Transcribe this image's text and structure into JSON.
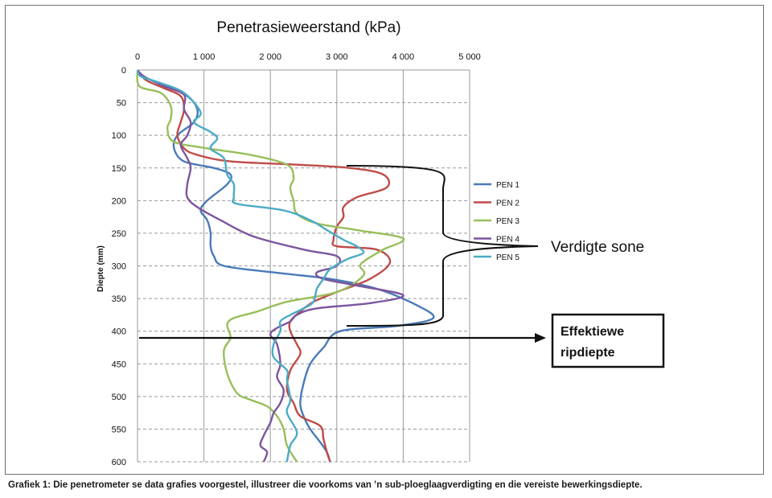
{
  "chart_data": {
    "type": "line",
    "title": "Penetrasieweerstand (kPa)",
    "xlabel": "",
    "ylabel": "Diepte (mm)",
    "xlim": [
      0,
      5000
    ],
    "ylim": [
      0,
      600
    ],
    "y_inverted": true,
    "x_axis_position": "top",
    "x_ticks": [
      0,
      1000,
      2000,
      3000,
      4000,
      5000
    ],
    "x_tick_labels": [
      "0",
      "1 000",
      "2 000",
      "3 000",
      "4 000",
      "5 000"
    ],
    "y_ticks": [
      0,
      50,
      100,
      150,
      200,
      250,
      300,
      350,
      400,
      450,
      500,
      550,
      600
    ],
    "y_tick_labels": [
      "0",
      "50",
      "100",
      "150",
      "200",
      "250",
      "300",
      "350",
      "400",
      "450",
      "500",
      "550",
      "600"
    ],
    "grid": "dashed horizontal, solid vertical",
    "legend_position": "right",
    "series": [
      {
        "name": "PEN   1",
        "color": "#4a7ab8",
        "points": [
          [
            0,
            0
          ],
          [
            80,
            10
          ],
          [
            450,
            25
          ],
          [
            750,
            40
          ],
          [
            900,
            60
          ],
          [
            850,
            80
          ],
          [
            600,
            100
          ],
          [
            550,
            120
          ],
          [
            700,
            140
          ],
          [
            1150,
            150
          ],
          [
            1400,
            160
          ],
          [
            1350,
            175
          ],
          [
            1050,
            200
          ],
          [
            950,
            215
          ],
          [
            1050,
            230
          ],
          [
            1100,
            250
          ],
          [
            1100,
            270
          ],
          [
            1150,
            285
          ],
          [
            1300,
            300
          ],
          [
            2050,
            310
          ],
          [
            2900,
            320
          ],
          [
            3600,
            335
          ],
          [
            4200,
            360
          ],
          [
            4450,
            380
          ],
          [
            3900,
            392
          ],
          [
            3050,
            400
          ],
          [
            2800,
            425
          ],
          [
            2600,
            450
          ],
          [
            2500,
            480
          ],
          [
            2450,
            510
          ],
          [
            2500,
            530
          ],
          [
            2600,
            550
          ],
          [
            2750,
            570
          ],
          [
            2850,
            585
          ],
          [
            2900,
            600
          ]
        ]
      },
      {
        "name": "PEN   2",
        "color": "#bf4b47",
        "points": [
          [
            0,
            0
          ],
          [
            120,
            15
          ],
          [
            400,
            28
          ],
          [
            650,
            40
          ],
          [
            700,
            60
          ],
          [
            650,
            80
          ],
          [
            600,
            100
          ],
          [
            700,
            120
          ],
          [
            900,
            130
          ],
          [
            1400,
            140
          ],
          [
            2400,
            145
          ],
          [
            3200,
            150
          ],
          [
            3700,
            160
          ],
          [
            3750,
            180
          ],
          [
            3300,
            195
          ],
          [
            3100,
            210
          ],
          [
            3100,
            225
          ],
          [
            3000,
            240
          ],
          [
            2950,
            260
          ],
          [
            3000,
            270
          ],
          [
            3600,
            275
          ],
          [
            3800,
            295
          ],
          [
            3500,
            320
          ],
          [
            3000,
            340
          ],
          [
            2650,
            355
          ],
          [
            2450,
            370
          ],
          [
            2300,
            385
          ],
          [
            2300,
            400
          ],
          [
            2400,
            420
          ],
          [
            2450,
            435
          ],
          [
            2300,
            460
          ],
          [
            2250,
            490
          ],
          [
            2350,
            510
          ],
          [
            2450,
            530
          ],
          [
            2750,
            545
          ],
          [
            2800,
            565
          ],
          [
            2850,
            585
          ],
          [
            2900,
            600
          ]
        ]
      },
      {
        "name": "PEN   3",
        "color": "#97bf5a",
        "points": [
          [
            0,
            0
          ],
          [
            30,
            25
          ],
          [
            350,
            35
          ],
          [
            500,
            55
          ],
          [
            500,
            75
          ],
          [
            450,
            90
          ],
          [
            550,
            110
          ],
          [
            1050,
            120
          ],
          [
            1700,
            130
          ],
          [
            2250,
            145
          ],
          [
            2350,
            165
          ],
          [
            2300,
            180
          ],
          [
            2350,
            200
          ],
          [
            2400,
            220
          ],
          [
            2700,
            235
          ],
          [
            3300,
            245
          ],
          [
            4000,
            258
          ],
          [
            3700,
            275
          ],
          [
            3450,
            290
          ],
          [
            3350,
            300
          ],
          [
            3400,
            315
          ],
          [
            3000,
            340
          ],
          [
            2250,
            355
          ],
          [
            1800,
            370
          ],
          [
            1450,
            380
          ],
          [
            1350,
            390
          ],
          [
            1400,
            410
          ],
          [
            1300,
            430
          ],
          [
            1350,
            465
          ],
          [
            1500,
            495
          ],
          [
            1700,
            505
          ],
          [
            1950,
            515
          ],
          [
            2100,
            530
          ],
          [
            2200,
            550
          ],
          [
            2250,
            575
          ],
          [
            2400,
            600
          ]
        ]
      },
      {
        "name": "PEN   4",
        "color": "#7b569d",
        "points": [
          [
            0,
            0
          ],
          [
            100,
            10
          ],
          [
            400,
            25
          ],
          [
            700,
            38
          ],
          [
            700,
            60
          ],
          [
            800,
            80
          ],
          [
            750,
            100
          ],
          [
            650,
            115
          ],
          [
            750,
            135
          ],
          [
            800,
            150
          ],
          [
            750,
            175
          ],
          [
            750,
            195
          ],
          [
            900,
            210
          ],
          [
            1250,
            230
          ],
          [
            1750,
            255
          ],
          [
            2500,
            275
          ],
          [
            3000,
            285
          ],
          [
            3000,
            300
          ],
          [
            2700,
            310
          ],
          [
            2800,
            320
          ],
          [
            3300,
            330
          ],
          [
            4000,
            345
          ],
          [
            3500,
            357
          ],
          [
            2700,
            365
          ],
          [
            2400,
            375
          ],
          [
            2300,
            385
          ],
          [
            2100,
            395
          ],
          [
            2000,
            405
          ],
          [
            2100,
            420
          ],
          [
            2150,
            450
          ],
          [
            2100,
            470
          ],
          [
            2200,
            490
          ],
          [
            2150,
            510
          ],
          [
            2050,
            525
          ],
          [
            2000,
            540
          ],
          [
            1900,
            560
          ],
          [
            1850,
            575
          ],
          [
            1950,
            585
          ],
          [
            1900,
            600
          ]
        ]
      },
      {
        "name": "PEN   5",
        "color": "#4babc6",
        "points": [
          [
            0,
            0
          ],
          [
            50,
            10
          ],
          [
            350,
            20
          ],
          [
            700,
            35
          ],
          [
            950,
            65
          ],
          [
            850,
            80
          ],
          [
            1100,
            95
          ],
          [
            1200,
            105
          ],
          [
            1100,
            120
          ],
          [
            1300,
            135
          ],
          [
            1350,
            160
          ],
          [
            1450,
            175
          ],
          [
            1450,
            195
          ],
          [
            1500,
            205
          ],
          [
            2200,
            215
          ],
          [
            2600,
            230
          ],
          [
            2850,
            245
          ],
          [
            3100,
            260
          ],
          [
            3300,
            270
          ],
          [
            3400,
            280
          ],
          [
            3150,
            290
          ],
          [
            2900,
            305
          ],
          [
            2800,
            320
          ],
          [
            2700,
            335
          ],
          [
            2650,
            355
          ],
          [
            2500,
            365
          ],
          [
            2300,
            375
          ],
          [
            2150,
            385
          ],
          [
            2150,
            400
          ],
          [
            2050,
            420
          ],
          [
            2050,
            440
          ],
          [
            2250,
            460
          ],
          [
            2250,
            475
          ],
          [
            2300,
            505
          ],
          [
            2250,
            525
          ],
          [
            2400,
            555
          ],
          [
            2300,
            575
          ],
          [
            2250,
            600
          ]
        ]
      }
    ],
    "annotations": {
      "compacted_zone_label": "Verdigte sone",
      "ripping_depth_label_line1": "Effektiewe",
      "ripping_depth_label_line2": "ripdiepte",
      "ripping_depth_mm": 410,
      "compacted_zone_from_mm": 147,
      "compacted_zone_to_mm": 392
    }
  },
  "caption": "Grafiek 1: Die penetrometer se data grafies voorgestel, illustreer die voorkoms van ’n sub-ploeglaagverdigting en die vereiste bewerkingsdiepte.",
  "colors": {
    "grid": "#9a9a9a",
    "axis": "#888888",
    "annotation": "#111111"
  }
}
